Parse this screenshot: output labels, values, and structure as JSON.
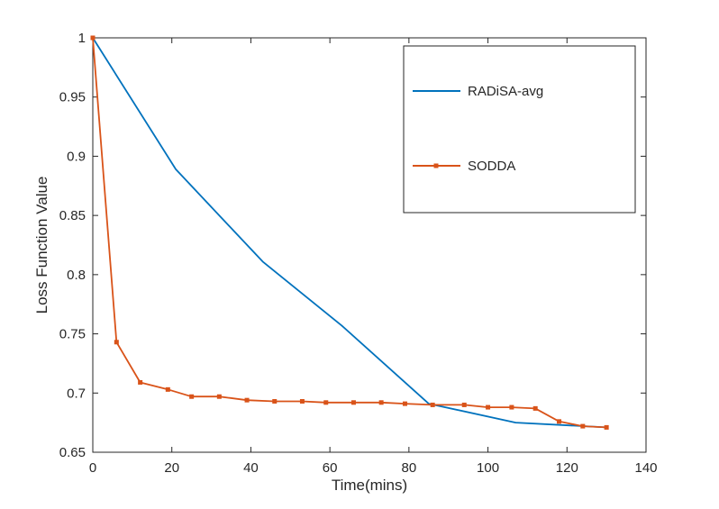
{
  "chart_data": {
    "type": "line",
    "title": "",
    "xlabel": "Time(mins)",
    "ylabel": "Loss Function Value",
    "xlim": [
      0,
      140
    ],
    "ylim": [
      0.65,
      1
    ],
    "xticks": [
      0,
      20,
      40,
      60,
      80,
      100,
      120,
      140
    ],
    "yticks": [
      0.65,
      0.7,
      0.75,
      0.8,
      0.85,
      0.9,
      0.95,
      1
    ],
    "xtick_labels": [
      "0",
      "20",
      "40",
      "60",
      "80",
      "100",
      "120",
      "140"
    ],
    "ytick_labels": [
      "0.65",
      "0.7",
      "0.75",
      "0.8",
      "0.85",
      "0.9",
      "0.95",
      "1"
    ],
    "grid": false,
    "legend_position": "top-right",
    "series": [
      {
        "name": "RADiSA-avg",
        "color": "#0072BD",
        "marker": "none",
        "x": [
          0,
          21,
          43,
          63,
          85,
          107,
          130
        ],
        "y": [
          1.0,
          0.889,
          0.811,
          0.757,
          0.691,
          0.675,
          0.671
        ]
      },
      {
        "name": "SODDA",
        "color": "#D95319",
        "marker": "square",
        "x": [
          0,
          6,
          12,
          19,
          25,
          32,
          39,
          46,
          53,
          59,
          66,
          73,
          79,
          86,
          94,
          100,
          106,
          112,
          118,
          124,
          130
        ],
        "y": [
          1.0,
          0.743,
          0.709,
          0.703,
          0.697,
          0.697,
          0.694,
          0.693,
          0.693,
          0.692,
          0.692,
          0.692,
          0.691,
          0.69,
          0.69,
          0.688,
          0.688,
          0.687,
          0.676,
          0.672,
          0.671
        ]
      }
    ]
  }
}
